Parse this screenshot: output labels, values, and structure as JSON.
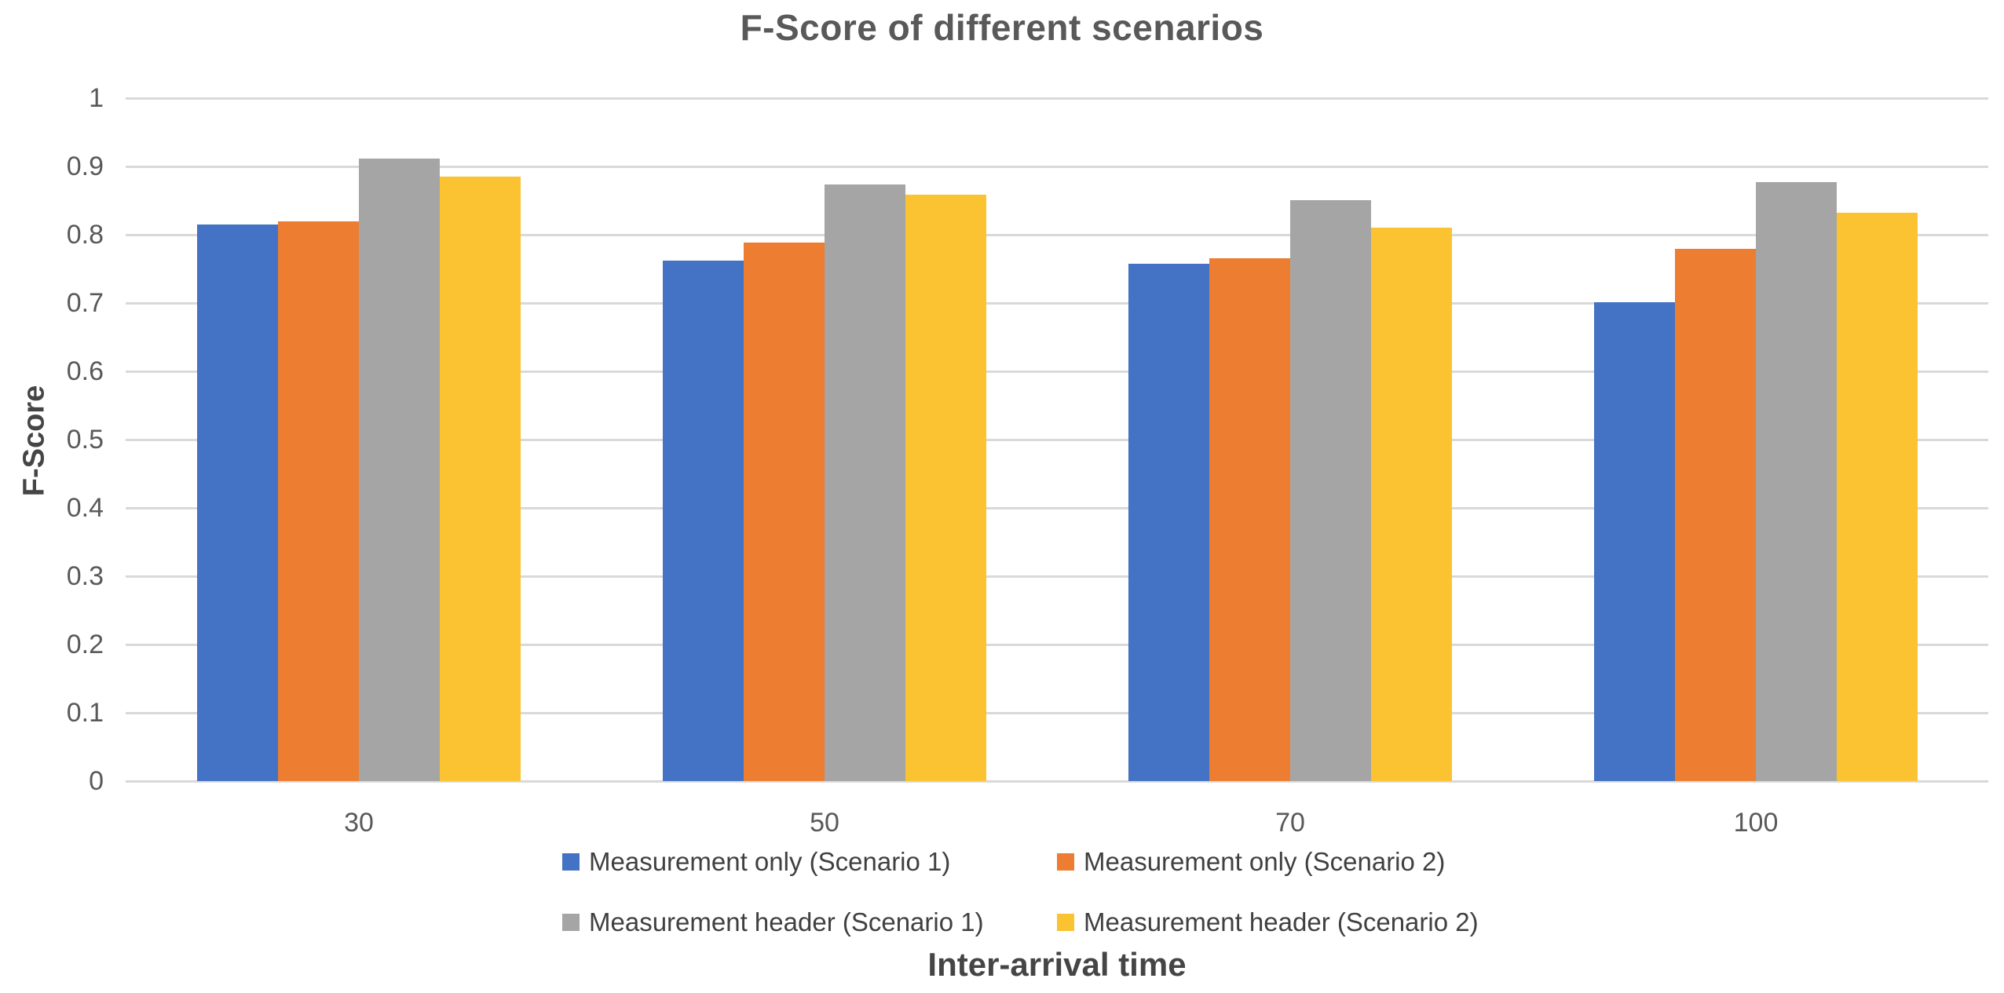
{
  "chart_data": {
    "type": "bar",
    "title": "F-Score of different scenarios",
    "xlabel": "Inter-arrival time",
    "ylabel": "F-Score",
    "ylim": [
      0,
      1
    ],
    "y_tick_labels": [
      "1",
      "0.9",
      "0.8",
      "0.7",
      "0.6",
      "0.5",
      "0.4",
      "0.3",
      "0.2",
      "0.1",
      "0"
    ],
    "grid": true,
    "legend_position": "bottom-two-rows",
    "categories": [
      "30",
      "50",
      "70",
      "100"
    ],
    "series": [
      {
        "name": "Measurement only (Scenario 1)",
        "color": "#4472C4",
        "values": [
          0.815,
          0.762,
          0.758,
          0.701
        ]
      },
      {
        "name": "Measurement only (Scenario 2)",
        "color": "#ED7D31",
        "values": [
          0.819,
          0.789,
          0.766,
          0.779
        ]
      },
      {
        "name": "Measurement header (Scenario 1)",
        "color": "#A5A5A5",
        "values": [
          0.912,
          0.874,
          0.851,
          0.877
        ]
      },
      {
        "name": "Measurement header (Scenario 2)",
        "color": "#FBC331",
        "values": [
          0.885,
          0.859,
          0.81,
          0.832
        ]
      }
    ],
    "colors": {
      "gridline": "#D9D9D9",
      "title_text": "#595959",
      "tick_text": "#595959",
      "legend_text": "#404040"
    }
  }
}
